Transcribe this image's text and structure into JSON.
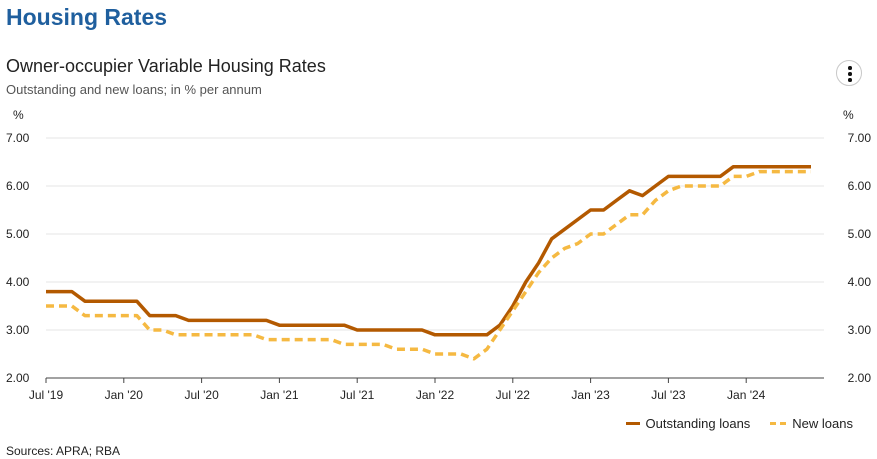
{
  "page": {
    "heading": "Housing Rates"
  },
  "menu": {
    "icon": "more-vertical-icon"
  },
  "chart_data": {
    "type": "line",
    "title": "Owner-occupier Variable Housing Rates",
    "subtitle": "Outstanding and new loans; in % per annum",
    "ylabel": "%",
    "ylabel_right": "%",
    "ylim": [
      2.0,
      7.0
    ],
    "yticks": [
      "2.00",
      "3.00",
      "4.00",
      "5.00",
      "6.00",
      "7.00"
    ],
    "xlim": [
      "2019-07",
      "2024-07"
    ],
    "xticks": [
      {
        "date": "2019-07",
        "label": "Jul '19"
      },
      {
        "date": "2020-01",
        "label": "Jan '20"
      },
      {
        "date": "2020-07",
        "label": "Jul '20"
      },
      {
        "date": "2021-01",
        "label": "Jan '21"
      },
      {
        "date": "2021-07",
        "label": "Jul '21"
      },
      {
        "date": "2022-01",
        "label": "Jan '22"
      },
      {
        "date": "2022-07",
        "label": "Jul '22"
      },
      {
        "date": "2023-01",
        "label": "Jan '23"
      },
      {
        "date": "2023-07",
        "label": "Jul '23"
      },
      {
        "date": "2024-01",
        "label": "Jan '24"
      }
    ],
    "grid": true,
    "legend_position": "bottom-right",
    "series": [
      {
        "name": "Outstanding loans",
        "color": "#b35900",
        "style": "solid",
        "x": [
          "2019-07",
          "2019-08",
          "2019-09",
          "2019-10",
          "2019-11",
          "2019-12",
          "2020-01",
          "2020-02",
          "2020-03",
          "2020-04",
          "2020-05",
          "2020-06",
          "2020-07",
          "2020-08",
          "2020-09",
          "2020-10",
          "2020-11",
          "2020-12",
          "2021-01",
          "2021-02",
          "2021-03",
          "2021-04",
          "2021-05",
          "2021-06",
          "2021-07",
          "2021-08",
          "2021-09",
          "2021-10",
          "2021-11",
          "2021-12",
          "2022-01",
          "2022-02",
          "2022-03",
          "2022-04",
          "2022-05",
          "2022-06",
          "2022-07",
          "2022-08",
          "2022-09",
          "2022-10",
          "2022-11",
          "2022-12",
          "2023-01",
          "2023-02",
          "2023-03",
          "2023-04",
          "2023-05",
          "2023-06",
          "2023-07",
          "2023-08",
          "2023-09",
          "2023-10",
          "2023-11",
          "2023-12",
          "2024-01",
          "2024-02",
          "2024-03",
          "2024-04",
          "2024-05",
          "2024-06"
        ],
        "y": [
          3.8,
          3.8,
          3.8,
          3.6,
          3.6,
          3.6,
          3.6,
          3.6,
          3.3,
          3.3,
          3.3,
          3.2,
          3.2,
          3.2,
          3.2,
          3.2,
          3.2,
          3.2,
          3.1,
          3.1,
          3.1,
          3.1,
          3.1,
          3.1,
          3.0,
          3.0,
          3.0,
          3.0,
          3.0,
          3.0,
          2.9,
          2.9,
          2.9,
          2.9,
          2.9,
          3.1,
          3.5,
          4.0,
          4.4,
          4.9,
          5.1,
          5.3,
          5.5,
          5.5,
          5.7,
          5.9,
          5.8,
          6.0,
          6.2,
          6.2,
          6.2,
          6.2,
          6.2,
          6.4,
          6.4,
          6.4,
          6.4,
          6.4,
          6.4,
          6.4
        ]
      },
      {
        "name": "New loans",
        "color": "#f5b942",
        "style": "dashed",
        "x": [
          "2019-07",
          "2019-08",
          "2019-09",
          "2019-10",
          "2019-11",
          "2019-12",
          "2020-01",
          "2020-02",
          "2020-03",
          "2020-04",
          "2020-05",
          "2020-06",
          "2020-07",
          "2020-08",
          "2020-09",
          "2020-10",
          "2020-11",
          "2020-12",
          "2021-01",
          "2021-02",
          "2021-03",
          "2021-04",
          "2021-05",
          "2021-06",
          "2021-07",
          "2021-08",
          "2021-09",
          "2021-10",
          "2021-11",
          "2021-12",
          "2022-01",
          "2022-02",
          "2022-03",
          "2022-04",
          "2022-05",
          "2022-06",
          "2022-07",
          "2022-08",
          "2022-09",
          "2022-10",
          "2022-11",
          "2022-12",
          "2023-01",
          "2023-02",
          "2023-03",
          "2023-04",
          "2023-05",
          "2023-06",
          "2023-07",
          "2023-08",
          "2023-09",
          "2023-10",
          "2023-11",
          "2023-12",
          "2024-01",
          "2024-02",
          "2024-03",
          "2024-04",
          "2024-05",
          "2024-06"
        ],
        "y": [
          3.5,
          3.5,
          3.5,
          3.3,
          3.3,
          3.3,
          3.3,
          3.3,
          3.0,
          3.0,
          2.9,
          2.9,
          2.9,
          2.9,
          2.9,
          2.9,
          2.9,
          2.8,
          2.8,
          2.8,
          2.8,
          2.8,
          2.8,
          2.7,
          2.7,
          2.7,
          2.7,
          2.6,
          2.6,
          2.6,
          2.5,
          2.5,
          2.5,
          2.4,
          2.6,
          3.0,
          3.4,
          3.8,
          4.2,
          4.5,
          4.7,
          4.8,
          5.0,
          5.0,
          5.2,
          5.4,
          5.4,
          5.7,
          5.9,
          6.0,
          6.0,
          6.0,
          6.0,
          6.2,
          6.2,
          6.3,
          6.3,
          6.3,
          6.3,
          6.3
        ]
      }
    ]
  },
  "footer": {
    "source": "Sources: APRA; RBA"
  }
}
